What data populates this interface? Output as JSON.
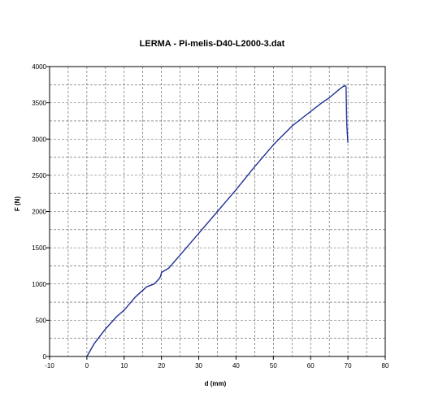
{
  "chart_data": {
    "type": "line",
    "title": "LERMA  - Pi-melis-D40-L2000-3.dat",
    "xlabel": "d (mm)",
    "ylabel": "F (N)",
    "xlim": [
      -10,
      80
    ],
    "ylim": [
      0,
      4000
    ],
    "x_ticks": [
      -10,
      0,
      10,
      20,
      30,
      40,
      50,
      60,
      70,
      80
    ],
    "y_ticks": [
      0,
      500,
      1000,
      1500,
      2000,
      2500,
      3000,
      3500,
      4000
    ],
    "grid": true,
    "grid_style": "dashed",
    "legend": "none",
    "line_color": "#1f2f96",
    "series": [
      {
        "x": [
          0,
          2,
          5,
          8,
          10,
          13,
          16,
          18,
          19.5,
          19.8,
          20,
          22,
          25,
          30,
          35,
          40,
          45,
          50,
          55,
          58,
          60,
          63,
          65,
          68,
          69.2,
          69.5,
          69.7,
          70
        ],
        "y": [
          0,
          180,
          380,
          550,
          640,
          820,
          960,
          1000,
          1080,
          1110,
          1160,
          1220,
          1400,
          1700,
          2000,
          2300,
          2620,
          2920,
          3180,
          3300,
          3380,
          3500,
          3570,
          3700,
          3740,
          3720,
          3200,
          2950
        ]
      }
    ]
  }
}
